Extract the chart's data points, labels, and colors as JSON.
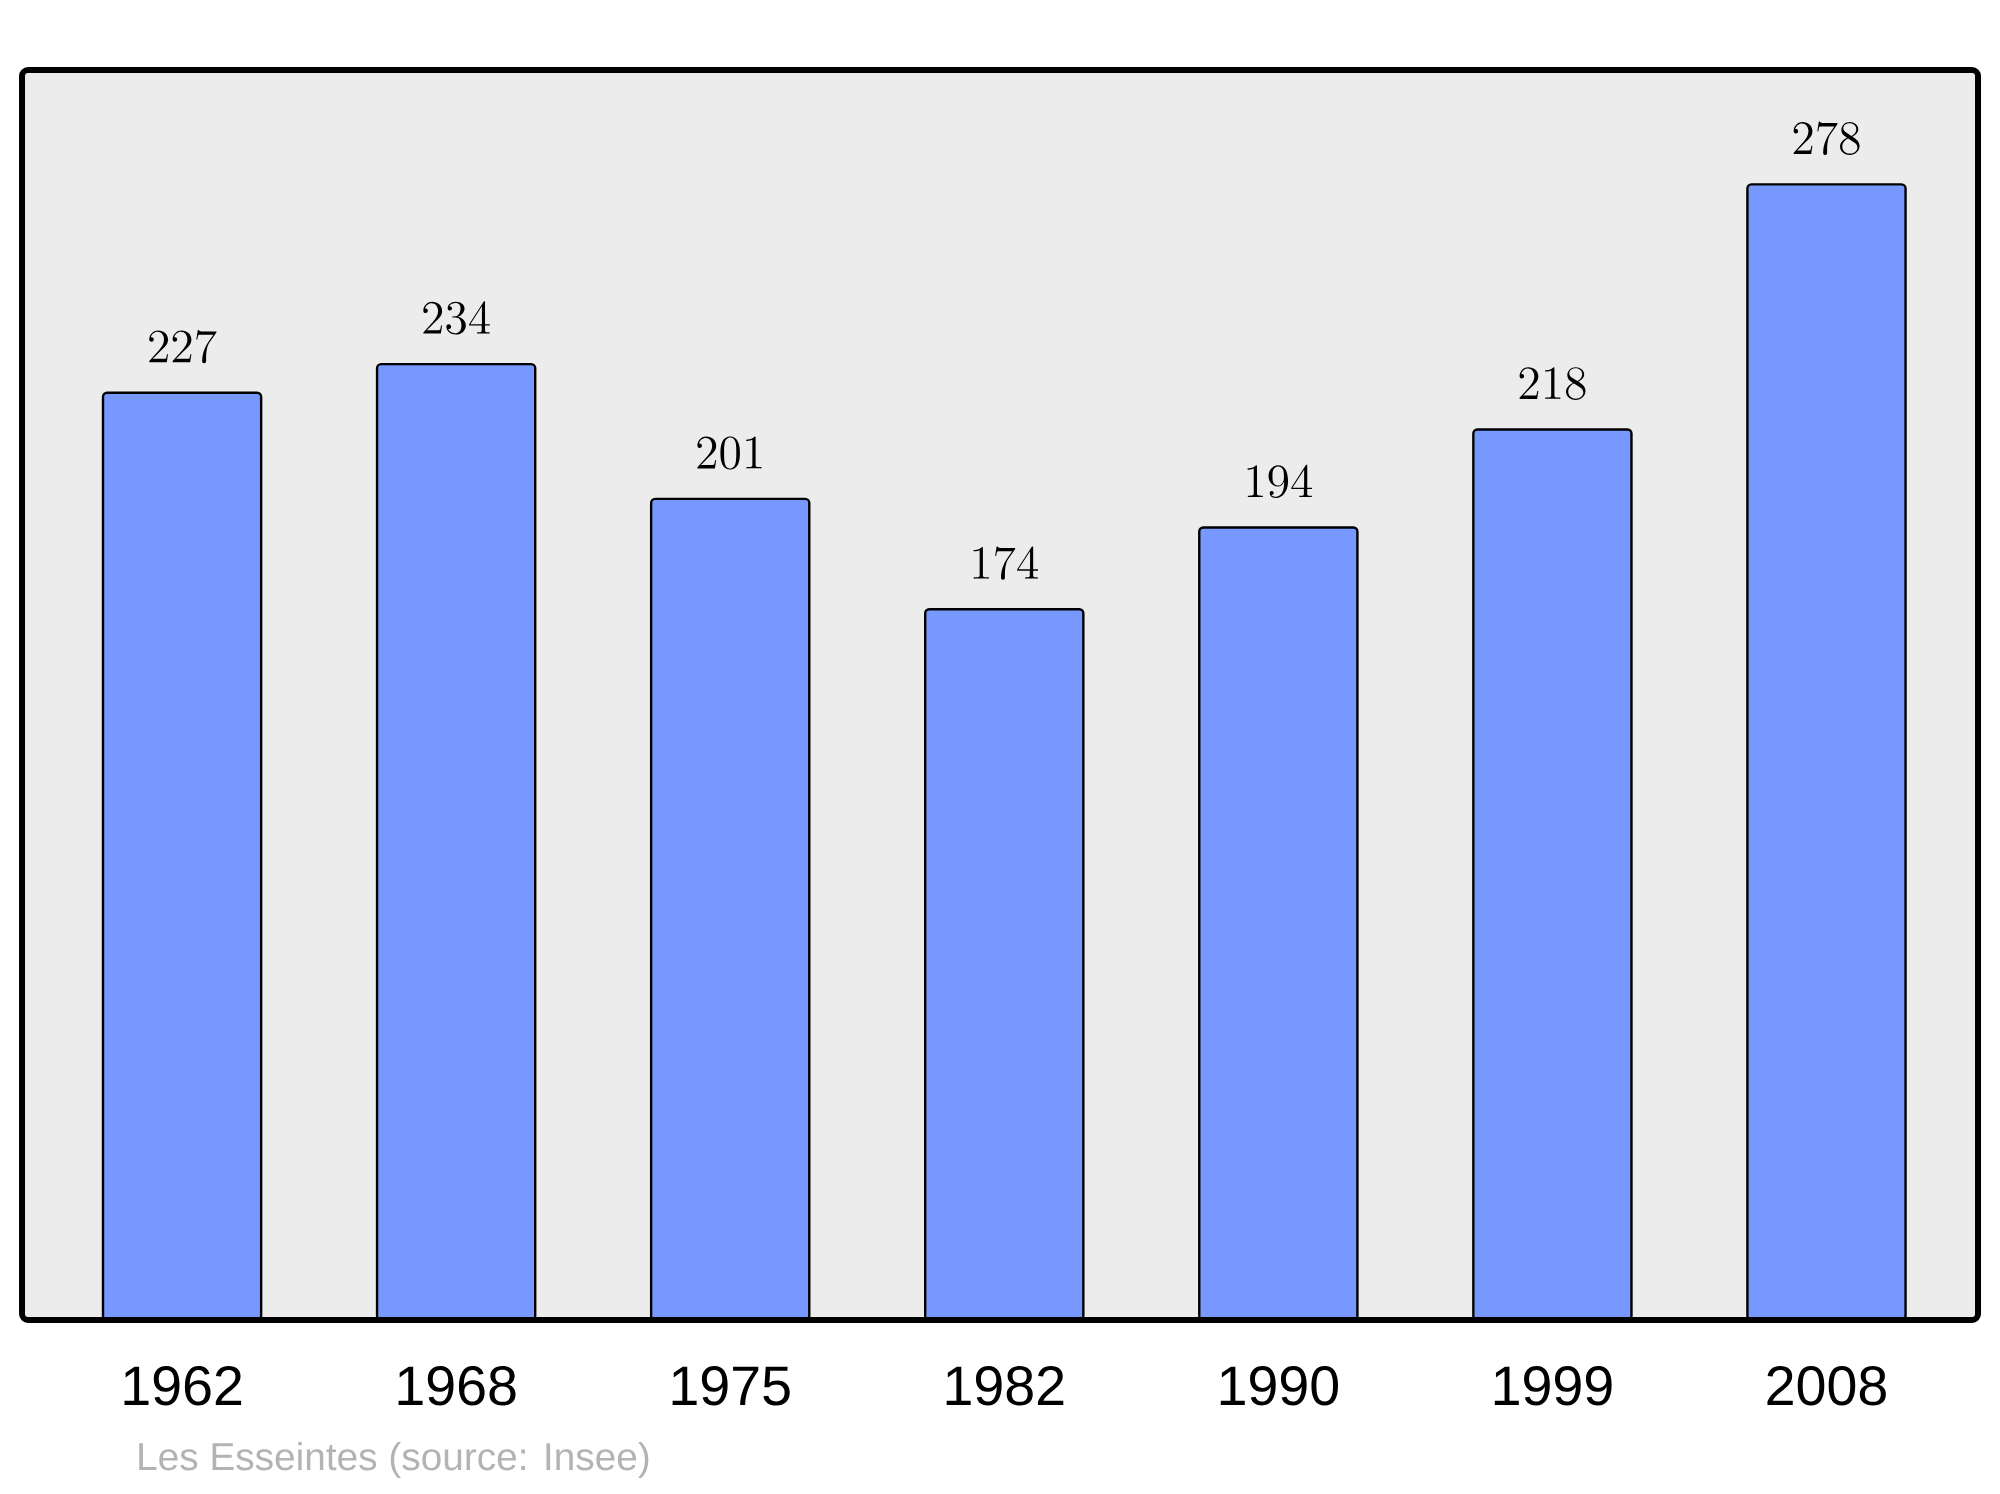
{
  "chart_data": {
    "type": "bar",
    "categories": [
      "1962",
      "1968",
      "1975",
      "1982",
      "1990",
      "1999",
      "2008"
    ],
    "values": [
      227,
      234,
      201,
      174,
      194,
      218,
      278
    ],
    "color": "#7799ff",
    "ylim": [
      0,
      306
    ],
    "data_labels": true,
    "annotations": [
      "Les Esseintes    (source: Insee)"
    ]
  }
}
